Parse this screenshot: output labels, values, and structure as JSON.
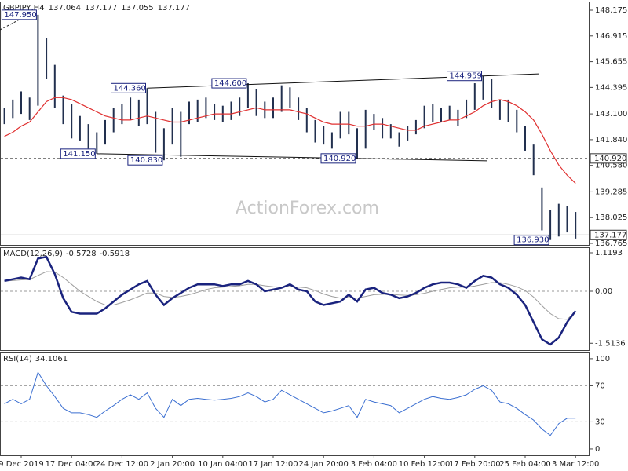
{
  "chart_data": [
    {
      "type": "hilo",
      "symbol": "GBPJPY,H4",
      "ohlc": [
        137.064,
        137.177,
        137.055,
        137.177
      ],
      "watermark": "ActionForex.com",
      "bar_color": "#22304f",
      "ma_color": "#e03030",
      "categories": [
        null,
        null,
        "9 Dec 2019",
        null,
        null,
        null,
        null,
        null,
        "17 Dec 04:00",
        null,
        null,
        null,
        null,
        null,
        "24 Dec 12:00",
        null,
        null,
        null,
        null,
        null,
        "2 Jan 20:00",
        null,
        null,
        null,
        null,
        null,
        "10 Jan 04:00",
        null,
        null,
        null,
        null,
        null,
        "17 Jan 12:00",
        null,
        null,
        null,
        null,
        null,
        "24 Jan 20:00",
        null,
        null,
        null,
        null,
        null,
        "3 Feb 04:00",
        null,
        null,
        null,
        null,
        null,
        "10 Feb 12:00",
        null,
        null,
        null,
        null,
        null,
        "17 Feb 20:00",
        null,
        null,
        null,
        null,
        null,
        "25 Feb 04:00",
        null,
        null,
        null,
        null,
        null,
        "3 Mar 12:00"
      ],
      "high": [
        143.4,
        143.8,
        144.2,
        143.9,
        147.95,
        146.8,
        145.5,
        144.0,
        143.6,
        143.0,
        142.6,
        142.2,
        142.8,
        143.4,
        143.6,
        143.9,
        143.8,
        144.36,
        143.2,
        142.4,
        143.4,
        143.2,
        143.7,
        143.8,
        143.9,
        143.6,
        143.5,
        143.7,
        143.9,
        144.6,
        144.3,
        143.7,
        143.9,
        144.5,
        144.4,
        143.9,
        143.4,
        142.8,
        142.5,
        142.2,
        143.2,
        143.2,
        142.4,
        143.3,
        143.1,
        142.9,
        142.6,
        142.2,
        142.5,
        142.8,
        143.5,
        143.6,
        143.4,
        143.5,
        143.3,
        143.8,
        144.6,
        144.96,
        144.8,
        143.8,
        143.8,
        143.3,
        142.5,
        141.6,
        139.5,
        138.4,
        138.7,
        138.6,
        138.3
      ],
      "low": [
        142.6,
        142.9,
        143.1,
        142.8,
        143.5,
        144.8,
        143.4,
        142.6,
        141.9,
        141.8,
        141.4,
        141.15,
        141.6,
        142.2,
        142.6,
        142.8,
        142.5,
        142.6,
        141.2,
        140.83,
        141.6,
        141.0,
        142.6,
        142.7,
        142.9,
        142.8,
        142.7,
        142.8,
        143.0,
        143.4,
        143.0,
        142.9,
        142.9,
        143.2,
        143.4,
        142.8,
        142.2,
        141.7,
        141.6,
        141.4,
        141.9,
        142.1,
        140.92,
        141.4,
        142.3,
        141.9,
        141.9,
        141.5,
        141.8,
        142.1,
        142.4,
        142.7,
        142.7,
        142.8,
        142.5,
        142.9,
        143.3,
        143.8,
        143.4,
        142.8,
        142.7,
        142.2,
        141.3,
        140.1,
        137.4,
        136.93,
        137.1,
        137.3,
        137.0
      ],
      "ma": [
        142.0,
        142.2,
        142.5,
        142.7,
        143.2,
        143.7,
        143.9,
        143.9,
        143.8,
        143.6,
        143.4,
        143.2,
        143.0,
        142.9,
        142.8,
        142.8,
        142.9,
        143.0,
        142.9,
        142.8,
        142.7,
        142.7,
        142.8,
        142.9,
        143.0,
        143.1,
        143.1,
        143.1,
        143.2,
        143.3,
        143.4,
        143.3,
        143.3,
        143.3,
        143.3,
        143.2,
        143.1,
        142.9,
        142.7,
        142.6,
        142.6,
        142.6,
        142.5,
        142.5,
        142.6,
        142.6,
        142.5,
        142.4,
        142.3,
        142.3,
        142.5,
        142.6,
        142.7,
        142.8,
        142.8,
        143.0,
        143.2,
        143.5,
        143.7,
        143.8,
        143.7,
        143.5,
        143.2,
        142.8,
        142.1,
        141.3,
        140.6,
        140.1,
        139.7
      ],
      "ylim": [
        136.688,
        148.559
      ],
      "yticks": [
        148.175,
        146.915,
        145.655,
        144.395,
        {
          "value": 143.1,
          "label": "143.100"
        },
        {
          "value": 141.84,
          "label": "141.840"
        },
        {
          "value": 140.58,
          "label": "140.580"
        },
        139.285,
        138.025,
        136.765
      ],
      "level": {
        "value": 140.92,
        "label": "140.920"
      },
      "last": {
        "value": 137.177,
        "label": "137.177"
      },
      "annotations": [
        {
          "label": "147.950",
          "value": 147.95,
          "index": 4
        },
        {
          "label": "144.360",
          "value": 144.36,
          "index": 17
        },
        {
          "label": "144.600",
          "value": 144.6,
          "index": 29
        },
        {
          "label": "144.959",
          "value": 144.959,
          "index": 57
        },
        {
          "label": "141.150",
          "value": 141.15,
          "index": 11
        },
        {
          "label": "140.830",
          "value": 140.83,
          "index": 19
        },
        {
          "label": "140.920",
          "value": 140.92,
          "index": 42
        },
        {
          "label": "136.930",
          "value": 136.93,
          "index": 65
        }
      ]
    },
    {
      "type": "macd",
      "title": "MACD(12,26,9)",
      "values_printed": [
        -0.5728,
        -0.5918
      ],
      "series": [
        {
          "color": "#1a237e",
          "values": [
            0.3,
            0.35,
            0.4,
            0.35,
            0.95,
            1.0,
            0.5,
            -0.2,
            -0.6,
            -0.65,
            -0.65,
            -0.65,
            -0.5,
            -0.3,
            -0.1,
            0.05,
            0.2,
            0.3,
            -0.1,
            -0.4,
            -0.2,
            -0.05,
            0.1,
            0.2,
            0.2,
            0.2,
            0.15,
            0.2,
            0.2,
            0.3,
            0.2,
            0.0,
            0.05,
            0.1,
            0.2,
            0.05,
            0.0,
            -0.3,
            -0.4,
            -0.35,
            -0.3,
            -0.1,
            -0.3,
            0.05,
            0.1,
            -0.05,
            -0.1,
            -0.2,
            -0.15,
            -0.05,
            0.1,
            0.2,
            0.25,
            0.25,
            0.2,
            0.1,
            0.3,
            0.45,
            0.4,
            0.2,
            0.1,
            -0.1,
            -0.4,
            -0.9,
            -1.4,
            -1.55,
            -1.35,
            -0.9,
            -0.5728
          ]
        },
        {
          "color": "#9e9e9e",
          "values": [
            0.3,
            0.31,
            0.33,
            0.34,
            0.46,
            0.57,
            0.56,
            0.4,
            0.2,
            0.0,
            -0.15,
            -0.3,
            -0.4,
            -0.4,
            -0.33,
            -0.25,
            -0.15,
            -0.05,
            -0.05,
            -0.15,
            -0.18,
            -0.15,
            -0.1,
            -0.03,
            0.05,
            0.1,
            0.12,
            0.14,
            0.16,
            0.2,
            0.2,
            0.16,
            0.13,
            0.12,
            0.14,
            0.12,
            0.1,
            0.02,
            -0.08,
            -0.15,
            -0.2,
            -0.18,
            -0.2,
            -0.15,
            -0.1,
            -0.09,
            -0.09,
            -0.11,
            -0.12,
            -0.1,
            -0.06,
            0.0,
            0.05,
            0.1,
            0.12,
            0.12,
            0.15,
            0.2,
            0.25,
            0.25,
            0.2,
            0.13,
            0.02,
            -0.17,
            -0.42,
            -0.65,
            -0.8,
            -0.82,
            -0.5918
          ]
        }
      ],
      "ylim": [
        -1.713,
        1.256
      ],
      "yticks": [
        1.1193,
        {
          "value": 0,
          "label": "0.00"
        },
        -1.5136
      ]
    },
    {
      "type": "rsi",
      "title": "RSI(14)",
      "value": 34.1061,
      "color": "#3b6fd1",
      "values": [
        50,
        55,
        50,
        55,
        85,
        70,
        58,
        45,
        40,
        40,
        38,
        35,
        42,
        48,
        55,
        60,
        55,
        62,
        45,
        35,
        55,
        48,
        55,
        56,
        55,
        54,
        55,
        56,
        58,
        62,
        58,
        52,
        55,
        65,
        60,
        55,
        50,
        45,
        40,
        42,
        45,
        48,
        35,
        55,
        52,
        50,
        48,
        40,
        45,
        50,
        55,
        58,
        56,
        55,
        57,
        60,
        66,
        70,
        65,
        52,
        50,
        45,
        38,
        32,
        22,
        15,
        28,
        34,
        34.1061
      ],
      "ylim": [
        -7,
        106
      ],
      "yticks": [
        100,
        70,
        30,
        0
      ]
    }
  ]
}
